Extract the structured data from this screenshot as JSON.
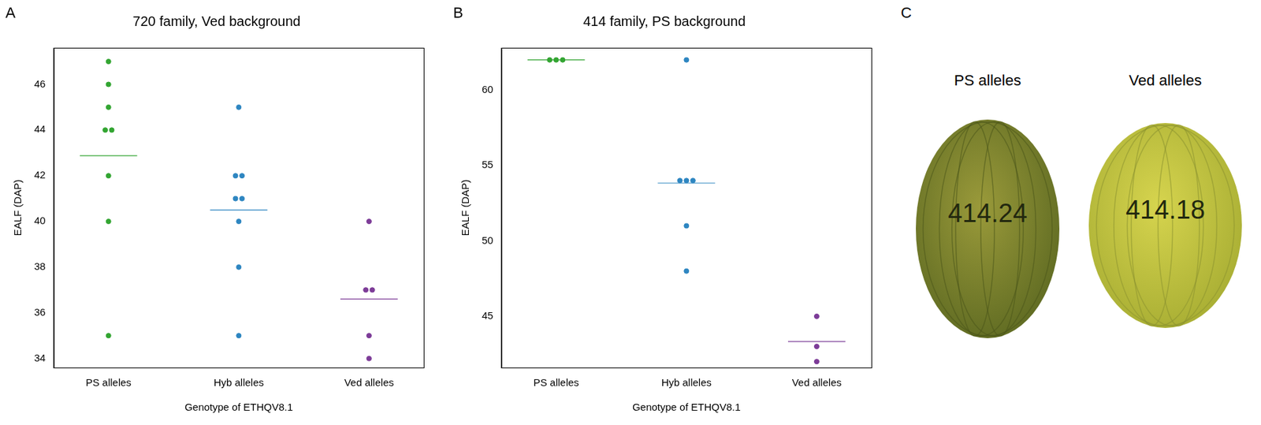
{
  "chart_data": [
    {
      "panel": "A",
      "type": "scatter",
      "title": "720 family, Ved background",
      "x_label": "Genotype of ETHQV8.1",
      "y_label": "EALF (DAP)",
      "categories": [
        "PS alleles",
        "Hyb alleles",
        "Ved alleles"
      ],
      "values": [
        [
          47,
          46,
          45,
          44,
          44,
          42,
          40,
          35
        ],
        [
          45,
          42,
          42,
          41,
          41,
          40,
          38,
          35
        ],
        [
          40,
          37,
          37,
          35,
          34
        ]
      ],
      "means": [
        42.875,
        40.5,
        36.6
      ],
      "colors": [
        "#33a532",
        "#2e86c1",
        "#7d3c98"
      ],
      "ylim": [
        33.6,
        47.6
      ],
      "yticks": [
        34,
        36,
        38,
        40,
        42,
        44,
        46
      ],
      "grid": false,
      "legend": false
    },
    {
      "panel": "B",
      "type": "scatter",
      "title": "414 family, PS background",
      "x_label": "Genotype of ETHQV8.1",
      "y_label": "EALF (DAP)",
      "categories": [
        "PS alleles",
        "Hyb alleles",
        "Ved alleles"
      ],
      "values": [
        [
          62,
          62,
          62
        ],
        [
          62,
          54,
          54,
          54,
          51,
          48
        ],
        [
          45,
          43,
          42
        ]
      ],
      "means": [
        62,
        53.83,
        43.33
      ],
      "colors": [
        "#33a532",
        "#2e86c1",
        "#7d3c98"
      ],
      "ylim": [
        41.6,
        62.8
      ],
      "yticks": [
        45,
        50,
        55,
        60
      ],
      "grid": false,
      "legend": false
    }
  ],
  "photo_panel": {
    "panel": "C",
    "labels": [
      "PS alleles",
      "Ved alleles"
    ],
    "fruit_markings": [
      "414.24",
      "414.18"
    ]
  }
}
